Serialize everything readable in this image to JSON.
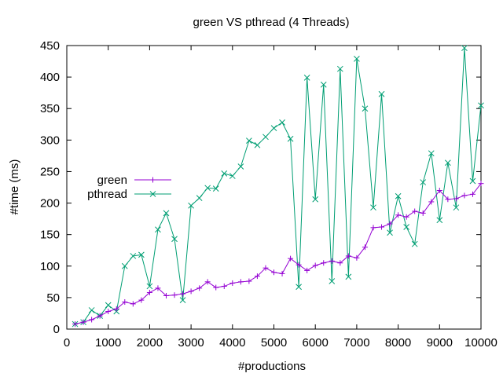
{
  "chart_data": {
    "type": "line",
    "title": "green VS pthread (4 Threads)",
    "xlabel": "#productions",
    "ylabel": "#time (ms)",
    "xlim": [
      0,
      10000
    ],
    "ylim": [
      0,
      450
    ],
    "xticks": [
      0,
      1000,
      2000,
      3000,
      4000,
      5000,
      6000,
      7000,
      8000,
      9000,
      10000
    ],
    "yticks": [
      0,
      50,
      100,
      150,
      200,
      250,
      300,
      350,
      400,
      450
    ],
    "grid": false,
    "legend_position": "left",
    "x": [
      200,
      400,
      600,
      800,
      1000,
      1200,
      1400,
      1600,
      1800,
      2000,
      2200,
      2400,
      2600,
      2800,
      3000,
      3200,
      3400,
      3600,
      3800,
      4000,
      4200,
      4400,
      4600,
      4800,
      5000,
      5200,
      5400,
      5600,
      5800,
      6000,
      6200,
      6400,
      6600,
      6800,
      7000,
      7200,
      7400,
      7600,
      7800,
      8000,
      8200,
      8400,
      8600,
      8800,
      9000,
      9200,
      9400,
      9600,
      9800,
      10000
    ],
    "series": [
      {
        "name": "green",
        "color": "#9400d3",
        "marker": "plus",
        "values": [
          8,
          11,
          15,
          21,
          28,
          32,
          43,
          40,
          46,
          58,
          65,
          53,
          54,
          56,
          60,
          65,
          75,
          66,
          68,
          73,
          75,
          76,
          84,
          97,
          90,
          88,
          112,
          102,
          93,
          101,
          105,
          108,
          105,
          116,
          113,
          130,
          161,
          162,
          167,
          181,
          178,
          187,
          184,
          202,
          220,
          206,
          207,
          212,
          214,
          231
        ]
      },
      {
        "name": "pthread",
        "color": "#009e73",
        "marker": "x",
        "values": [
          8,
          11,
          30,
          21,
          38,
          28,
          100,
          116,
          118,
          68,
          158,
          184,
          143,
          46,
          196,
          208,
          224,
          223,
          247,
          243,
          258,
          299,
          292,
          305,
          319,
          328,
          302,
          67,
          399,
          206,
          388,
          76,
          413,
          83,
          429,
          350,
          193,
          373,
          153,
          211,
          162,
          135,
          233,
          279,
          173,
          264,
          193,
          446,
          235,
          355
        ]
      }
    ]
  }
}
